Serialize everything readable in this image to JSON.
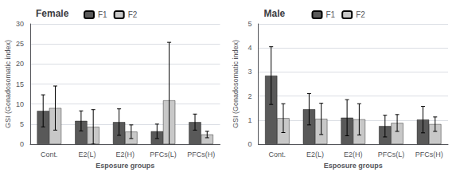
{
  "chart_data": [
    {
      "type": "bar",
      "title": "Female",
      "categories": [
        "Cont.",
        "E2(L)",
        "E2(H)",
        "PFCs(L)",
        "PFCs(H)"
      ],
      "series": [
        {
          "name": "F1",
          "color": "#595959",
          "values": [
            8.3,
            5.8,
            5.5,
            3.2,
            5.5
          ],
          "errors": [
            4.0,
            2.5,
            3.3,
            1.8,
            2.0
          ]
        },
        {
          "name": "F2",
          "color": "#c8c8c8",
          "values": [
            9.0,
            4.3,
            3.1,
            10.9,
            2.4
          ],
          "errors": [
            5.5,
            4.3,
            1.7,
            14.5,
            0.8
          ]
        }
      ],
      "xlabel": "Esposure groups",
      "ylabel": "GSI (Gonadosomatic index)",
      "ylim": [
        0,
        30
      ],
      "yticks": [
        0,
        5,
        10,
        15,
        20,
        25,
        30
      ],
      "grid": true,
      "legend": "upper left"
    },
    {
      "type": "bar",
      "title": "Male",
      "categories": [
        "Cont.",
        "E2(L)",
        "E2(H)",
        "PFCs(L)",
        "PFCs(H)"
      ],
      "series": [
        {
          "name": "F1",
          "color": "#595959",
          "values": [
            2.85,
            1.45,
            1.1,
            0.75,
            1.02
          ],
          "errors": [
            1.2,
            0.65,
            0.75,
            0.45,
            0.55
          ]
        },
        {
          "name": "F2",
          "color": "#c8c8c8",
          "values": [
            1.08,
            1.05,
            1.03,
            0.88,
            0.83
          ],
          "errors": [
            0.6,
            0.65,
            0.65,
            0.35,
            0.3
          ]
        }
      ],
      "xlabel": "Esposure groups",
      "ylabel": "GSI (Gonadosomatic index)",
      "ylim": [
        0,
        5
      ],
      "yticks": [
        0,
        1,
        2,
        3,
        4,
        5
      ],
      "grid": true,
      "legend": "upper left"
    }
  ]
}
